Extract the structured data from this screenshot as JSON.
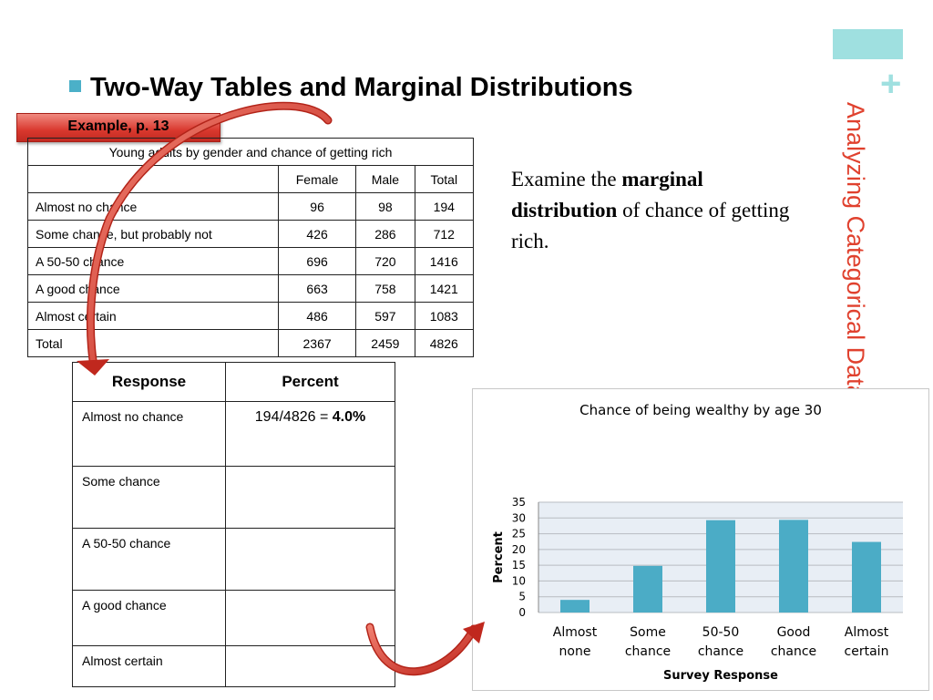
{
  "slide": {
    "heading": "Two-Way Tables and Marginal Distributions",
    "side_title": "Analyzing Categorical Data",
    "example_tag": "Example, p. 13",
    "examine": {
      "pre": "Examine the ",
      "bold": "marginal distribution",
      "post": " of chance of getting rich."
    },
    "accent_color": "#9fe0e0",
    "side_title_color": "#e0412e",
    "bullet_color": "#4bb0c8"
  },
  "two_way_table": {
    "caption": "Young adults by gender and chance of getting rich",
    "headers": [
      "",
      "Female",
      "Male",
      "Total"
    ],
    "rows": [
      [
        "Almost no chance",
        "96",
        "98",
        "194"
      ],
      [
        "Some chance, but probably not",
        "426",
        "286",
        "712"
      ],
      [
        "A 50-50 chance",
        "696",
        "720",
        "1416"
      ],
      [
        "A good chance",
        "663",
        "758",
        "1421"
      ],
      [
        "Almost certain",
        "486",
        "597",
        "1083"
      ],
      [
        "Total",
        "2367",
        "2459",
        "4826"
      ]
    ]
  },
  "marginal_table": {
    "headers": [
      "Response",
      "Percent"
    ],
    "rows": [
      {
        "response": "Almost no chance",
        "percent_pre": "194/4826 = ",
        "percent_bold": "4.0%"
      },
      {
        "response": "Some chance",
        "percent_pre": "",
        "percent_bold": ""
      },
      {
        "response": "A 50-50 chance",
        "percent_pre": "",
        "percent_bold": ""
      },
      {
        "response": "A good chance",
        "percent_pre": "",
        "percent_bold": ""
      },
      {
        "response": "Almost certain",
        "percent_pre": "",
        "percent_bold": ""
      }
    ]
  },
  "chart_data": {
    "type": "bar",
    "title": "Chance of being wealthy by age 30",
    "xlabel": "Survey Response",
    "ylabel": "Percent",
    "categories": [
      [
        "Almost",
        "none"
      ],
      [
        "Some",
        "chance"
      ],
      [
        "50-50",
        "chance"
      ],
      [
        "Good",
        "chance"
      ],
      [
        "Almost",
        "certain"
      ]
    ],
    "values": [
      4.0,
      14.8,
      29.3,
      29.4,
      22.4
    ],
    "ylim": [
      0,
      35
    ],
    "yticks": [
      0,
      5,
      10,
      15,
      20,
      25,
      30,
      35
    ],
    "grid": true,
    "bar_color": "#4bacc6",
    "plot_bg": "#e8eef5"
  }
}
